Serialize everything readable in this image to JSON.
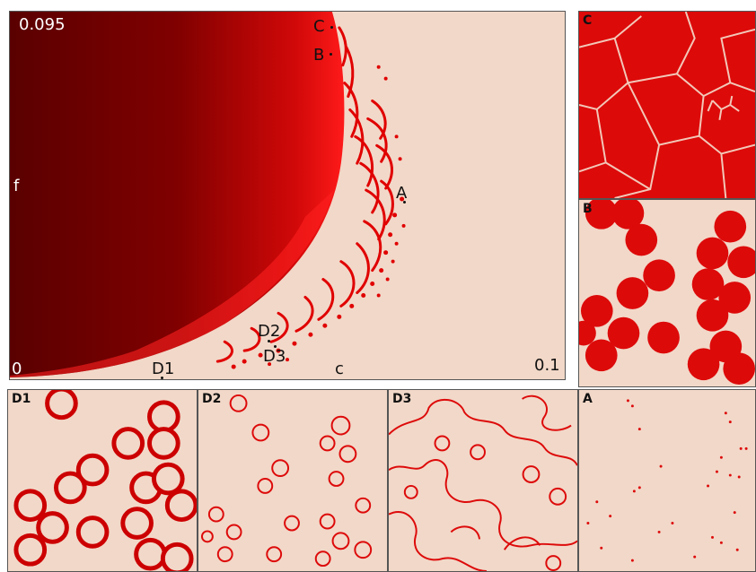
{
  "main": {
    "y_max_label": "0.095",
    "y_axis_label": "f",
    "origin_label": "0",
    "x_axis_label": "c",
    "x_max_label": "0.1",
    "points": {
      "C": "C",
      "B": "B",
      "A": "A",
      "D1": "D1",
      "D2": "D2",
      "D3": "D3"
    }
  },
  "panels": {
    "C": "C",
    "B": "B",
    "A": "A",
    "D1": "D1",
    "D2": "D2",
    "D3": "D3"
  },
  "colors": {
    "background": "#f2d8c8",
    "dark_red": "#6b0000",
    "red": "#dd0a0a",
    "border": "#555555"
  }
}
